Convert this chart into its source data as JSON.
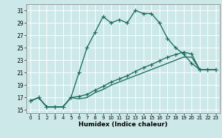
{
  "title": "",
  "xlabel": "Humidex (Indice chaleur)",
  "background_color": "#cde8e8",
  "grid_color": "#b0d8d8",
  "line_color": "#1a6b5a",
  "xlim": [
    -0.5,
    23.5
  ],
  "ylim": [
    14.5,
    32
  ],
  "yticks": [
    15,
    17,
    19,
    21,
    23,
    25,
    27,
    29,
    31
  ],
  "xticks": [
    0,
    1,
    2,
    3,
    4,
    5,
    6,
    7,
    8,
    9,
    10,
    11,
    12,
    13,
    14,
    15,
    16,
    17,
    18,
    19,
    20,
    21,
    22,
    23
  ],
  "main_x": [
    0,
    1,
    2,
    3,
    4,
    5,
    6,
    7,
    8,
    9,
    10,
    11,
    12,
    13,
    14,
    15,
    16,
    17,
    18,
    19,
    20,
    21,
    22,
    23
  ],
  "main_y": [
    16.5,
    17,
    15.5,
    15.5,
    15.5,
    17,
    21,
    25,
    27.5,
    30,
    29,
    29.5,
    29,
    31,
    30.5,
    30.5,
    29,
    26.5,
    25,
    24,
    22.5,
    21.5,
    21.5,
    21.5
  ],
  "line2_x": [
    0,
    1,
    2,
    3,
    4,
    5,
    6,
    7,
    8,
    9,
    10,
    11,
    12,
    13,
    14,
    15,
    16,
    17,
    18,
    19,
    20,
    21,
    22,
    23
  ],
  "line2_y": [
    16.5,
    17,
    15.5,
    15.5,
    15.5,
    17,
    17.2,
    17.5,
    18.2,
    18.8,
    19.5,
    20.0,
    20.5,
    21.2,
    21.8,
    22.3,
    22.9,
    23.5,
    23.9,
    24.3,
    24.0,
    21.5,
    21.5,
    21.5
  ],
  "line3_x": [
    0,
    1,
    2,
    3,
    4,
    5,
    6,
    7,
    8,
    9,
    10,
    11,
    12,
    13,
    14,
    15,
    16,
    17,
    18,
    19,
    20,
    21,
    22,
    23
  ],
  "line3_y": [
    16.5,
    17,
    15.5,
    15.5,
    15.5,
    17,
    16.8,
    17.0,
    17.8,
    18.3,
    19.0,
    19.5,
    20.0,
    20.5,
    21.0,
    21.5,
    22.0,
    22.5,
    23.0,
    23.5,
    23.5,
    21.5,
    21.5,
    21.5
  ],
  "marker": "+",
  "markersize": 4,
  "linewidth": 1.0,
  "tick_fontsize": 5.5,
  "xlabel_fontsize": 6.5
}
